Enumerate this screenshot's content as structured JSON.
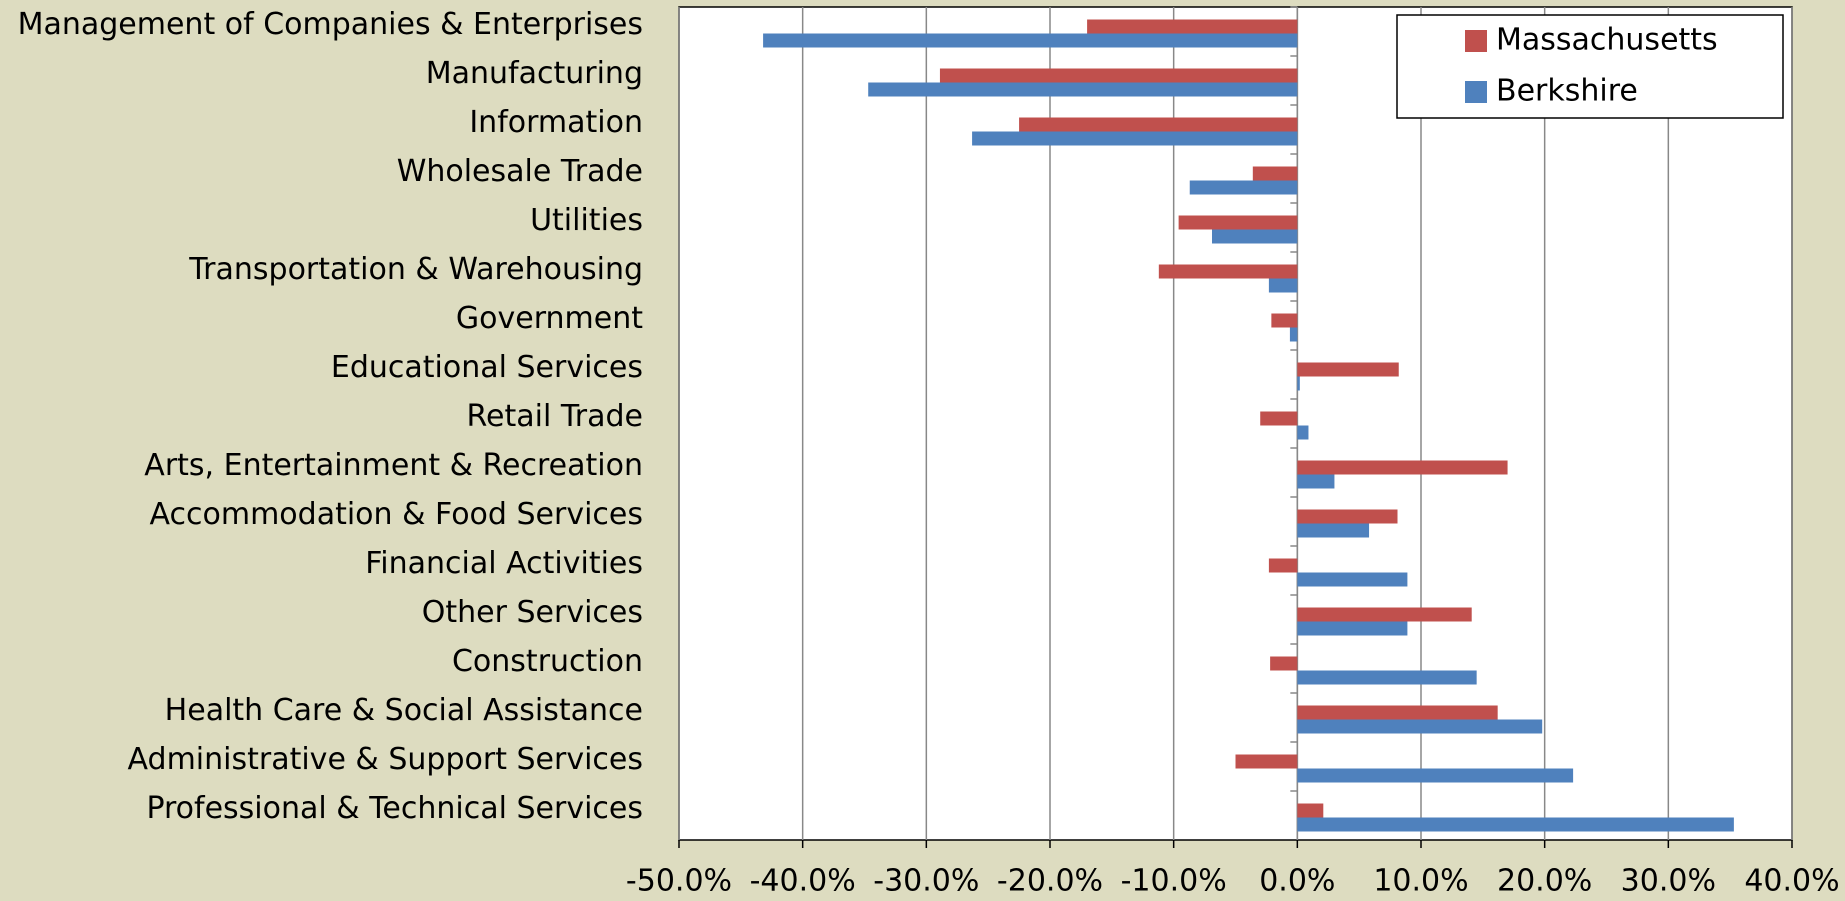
{
  "chart_data": {
    "type": "hbar",
    "categories": [
      "Management of Companies & Enterprises",
      "Manufacturing",
      "Information",
      "Wholesale Trade",
      "Utilities",
      "Transportation & Warehousing",
      "Government",
      "Educational Services",
      "Retail Trade",
      "Arts, Entertainment & Recreation",
      "Accommodation & Food Services",
      "Financial Activities",
      "Other Services",
      "Construction",
      "Health Care & Social Assistance",
      "Administrative & Support Services",
      "Professional & Technical Services"
    ],
    "series": [
      {
        "name": "Massachusetts",
        "color": "#c0504d",
        "values": [
          -17.0,
          -28.9,
          -22.5,
          -3.6,
          -9.6,
          -11.2,
          -2.1,
          8.2,
          -3.0,
          17.0,
          8.1,
          -2.3,
          14.1,
          -2.2,
          16.2,
          -5.0,
          2.1
        ]
      },
      {
        "name": "Berkshire",
        "color": "#4f81bd",
        "values": [
          -43.2,
          -34.7,
          -26.3,
          -8.7,
          -6.9,
          -2.3,
          -0.6,
          0.2,
          0.9,
          3.0,
          5.8,
          8.9,
          8.9,
          14.5,
          19.8,
          22.3,
          35.3
        ]
      }
    ],
    "xlim": [
      -50,
      40
    ],
    "xticks": [
      {
        "value": -50,
        "label": "-50.0%"
      },
      {
        "value": -40,
        "label": "-40.0%"
      },
      {
        "value": -30,
        "label": "-30.0%"
      },
      {
        "value": -20,
        "label": "-20.0%"
      },
      {
        "value": -10,
        "label": "-10.0%"
      },
      {
        "value": 0,
        "label": "0.0%"
      },
      {
        "value": 10,
        "label": "10.0%"
      },
      {
        "value": 20,
        "label": "20.0%"
      },
      {
        "value": 30,
        "label": "30.0%"
      },
      {
        "value": 40,
        "label": "40.0%"
      }
    ],
    "grid": true,
    "legend": "upper right"
  }
}
